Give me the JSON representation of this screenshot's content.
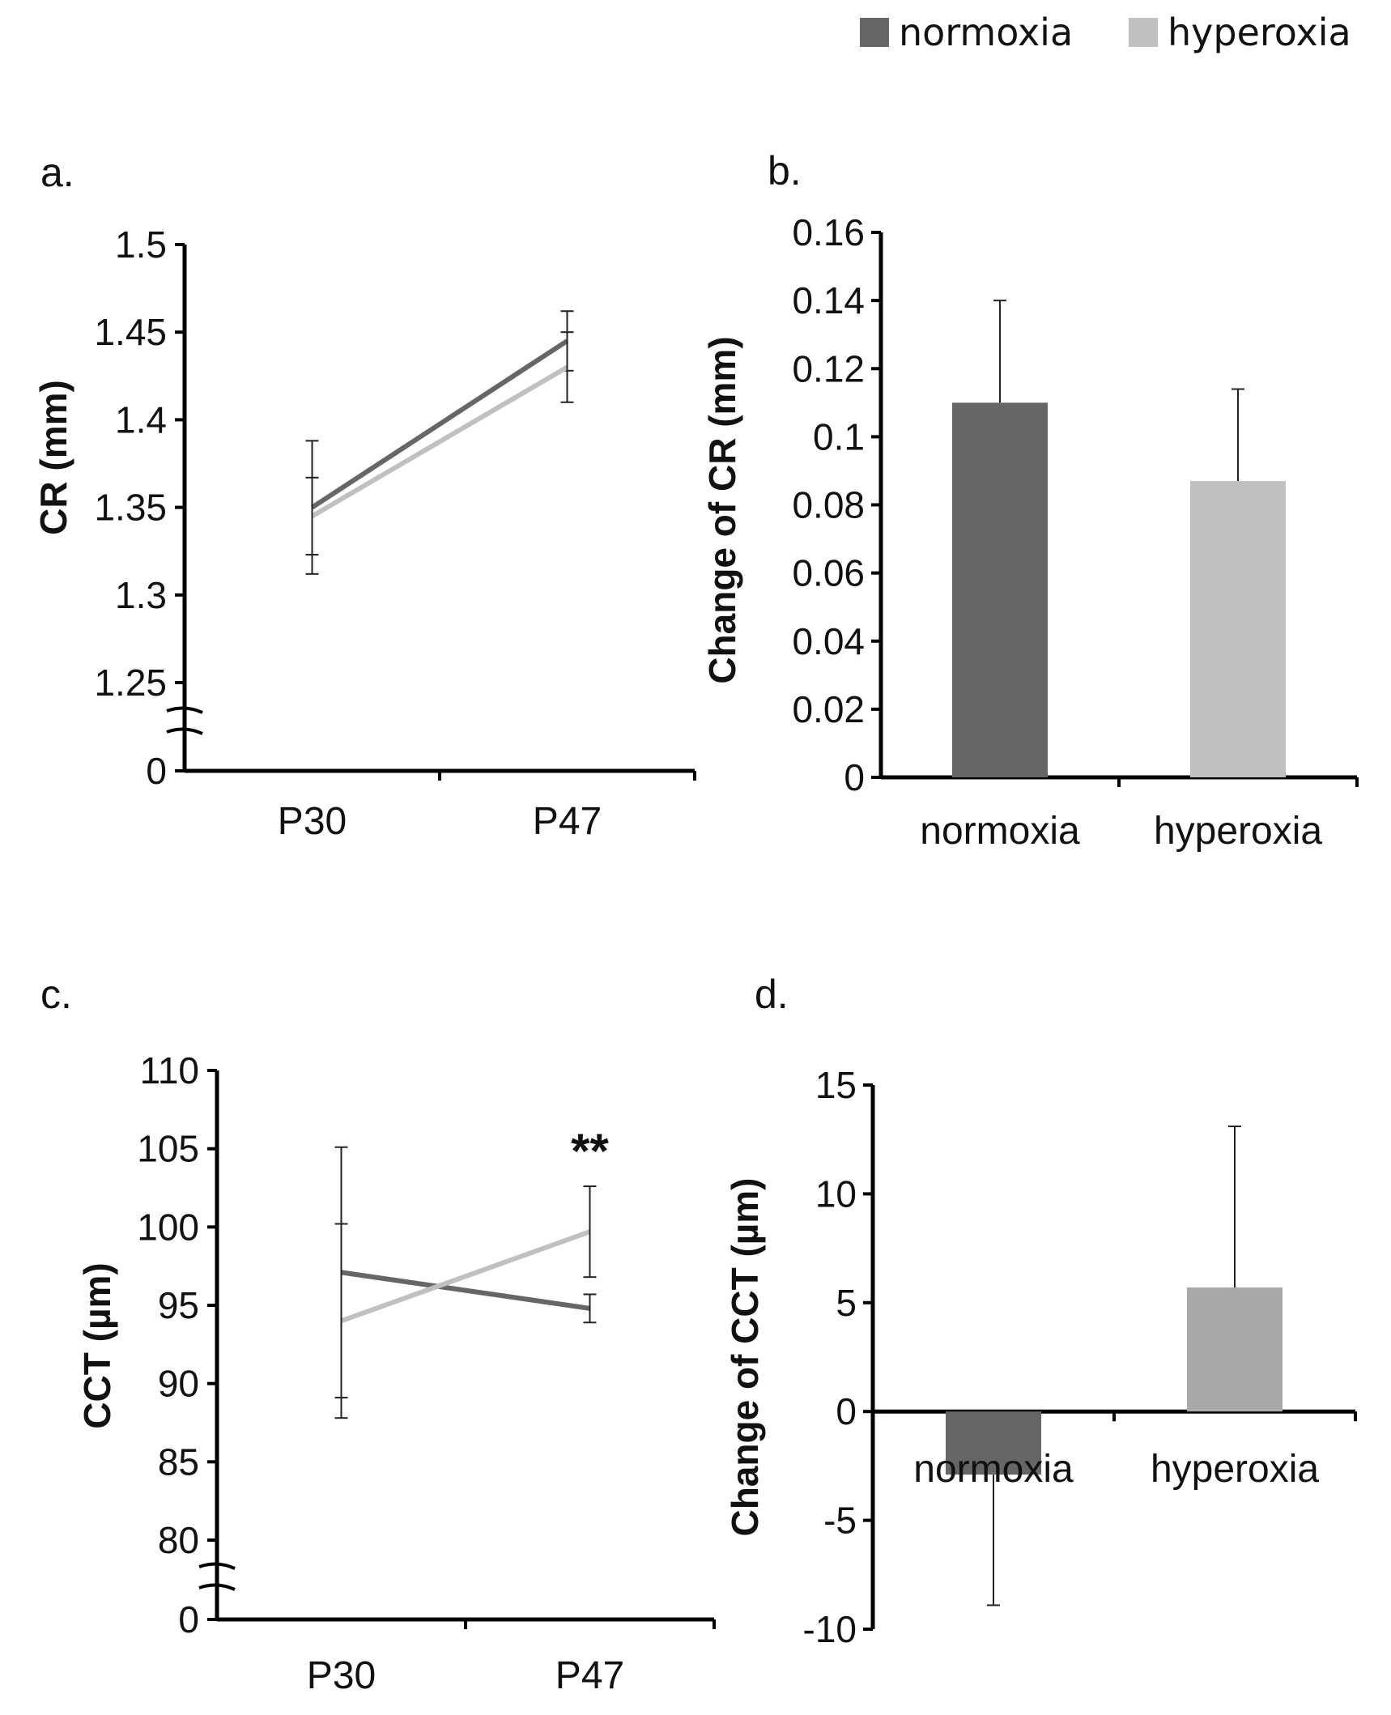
{
  "legend": {
    "items": [
      {
        "label": "normoxia",
        "color": "#666666"
      },
      {
        "label": "hyperoxia",
        "color": "#c0c0c0"
      }
    ]
  },
  "chart_data": [
    {
      "panel": "a.",
      "type": "line",
      "ylabel": "CR (mm)",
      "xlabel": "",
      "categories": [
        "P30",
        "P47"
      ],
      "y_ticks": [
        "0",
        "1.25",
        "1.3",
        "1.35",
        "1.4",
        "1.45",
        "1.5"
      ],
      "ylim": [
        1.25,
        1.5
      ],
      "axis_break": true,
      "series": [
        {
          "name": "normoxia",
          "values": [
            1.35,
            1.445
          ],
          "errors": [
            0.038,
            0.017
          ]
        },
        {
          "name": "hyperoxia",
          "values": [
            1.345,
            1.43
          ],
          "errors": [
            0.022,
            0.02
          ]
        }
      ]
    },
    {
      "panel": "b.",
      "type": "bar",
      "ylabel": "Change of CR (mm)",
      "xlabel": "",
      "categories": [
        "normoxia",
        "hyperoxia"
      ],
      "y_ticks": [
        "0",
        "0.02",
        "0.04",
        "0.06",
        "0.08",
        "0.1",
        "0.12",
        "0.14",
        "0.16"
      ],
      "ylim": [
        0,
        0.16
      ],
      "values": [
        0.11,
        0.087
      ],
      "errors": [
        0.03,
        0.027
      ]
    },
    {
      "panel": "c.",
      "type": "line",
      "ylabel": "CCT (µm)",
      "xlabel": "",
      "categories": [
        "P30",
        "P47"
      ],
      "y_ticks": [
        "0",
        "80",
        "85",
        "90",
        "95",
        "100",
        "105",
        "110"
      ],
      "ylim": [
        80,
        110
      ],
      "axis_break": true,
      "annotation": "**",
      "series": [
        {
          "name": "normoxia",
          "values": [
            97.1,
            94.8
          ],
          "errors": [
            8.0,
            0.9
          ]
        },
        {
          "name": "hyperoxia",
          "values": [
            94.0,
            99.7
          ],
          "errors": [
            6.2,
            2.9
          ]
        }
      ]
    },
    {
      "panel": "d.",
      "type": "bar",
      "ylabel": "Change of CCT (µm)",
      "xlabel": "",
      "categories": [
        "normoxia",
        "hyperoxia"
      ],
      "y_ticks": [
        "-10",
        "-5",
        "0",
        "5",
        "10",
        "15"
      ],
      "ylim": [
        -10,
        15
      ],
      "values": [
        -2.9,
        5.7
      ],
      "errors": [
        6.0,
        7.4
      ]
    }
  ]
}
